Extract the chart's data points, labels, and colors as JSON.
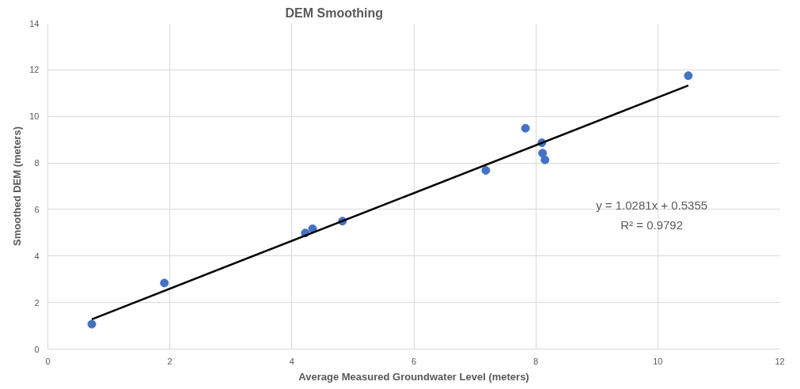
{
  "chart_data": {
    "type": "scatter",
    "title": "DEM Smoothing",
    "xlabel": "Average Measured Groundwater Level (meters)",
    "ylabel": "Smoothed DEM (meters)",
    "x": [
      0.72,
      1.91,
      4.22,
      4.34,
      4.83,
      7.18,
      7.83,
      8.1,
      8.11,
      8.15,
      10.5
    ],
    "series": [
      {
        "marker": "circle",
        "color": "#4472c4",
        "values": [
          1.07,
          2.84,
          4.99,
          5.17,
          5.5,
          7.68,
          9.49,
          8.87,
          8.42,
          8.13,
          11.75
        ]
      },
      {
        "type": "line",
        "color": "#000000",
        "x": [
          0.72,
          10.5
        ],
        "values": [
          1.28,
          11.33
        ]
      }
    ],
    "annotations": [
      "y = 1.0281x + 0.5355",
      "R² = 0.9792"
    ],
    "xlim": [
      0,
      12
    ],
    "ylim": [
      0,
      14
    ],
    "xticks": [
      0,
      2,
      4,
      6,
      8,
      10,
      12
    ],
    "yticks": [
      0,
      2,
      4,
      6,
      8,
      10,
      12,
      14
    ],
    "grid": true,
    "line_style": "solid"
  }
}
